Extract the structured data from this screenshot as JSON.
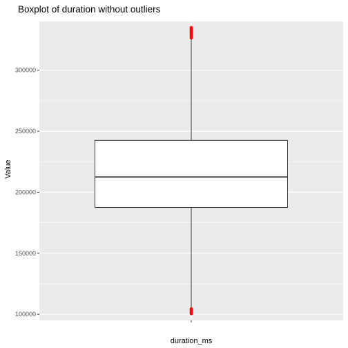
{
  "chart_data": {
    "type": "boxplot",
    "title": "Boxplot of duration without outliers",
    "xlabel": "",
    "ylabel": "Value",
    "categories": [
      "duration_ms"
    ],
    "ylim": [
      95000,
      340000
    ],
    "y_ticks": [
      100000,
      150000,
      200000,
      250000,
      300000
    ],
    "y_tick_labels": [
      "100000",
      "150000",
      "200000",
      "250000",
      "300000"
    ],
    "grid": true,
    "boxes": [
      {
        "category": "duration_ms",
        "whisker_low": 100500,
        "q1": 187500,
        "median": 212500,
        "q3": 242500,
        "whisker_high": 335000
      }
    ],
    "highlight_points": [
      {
        "category": "duration_ms",
        "y_from": 100500,
        "y_to": 104500
      },
      {
        "category": "duration_ms",
        "y_from": 326500,
        "y_to": 335000
      }
    ],
    "colors": {
      "panel_background": "#ebebeb",
      "grid": "#ffffff",
      "box_fill": "#ffffff",
      "box_stroke": "#333333",
      "highlight": "#ff0000"
    }
  }
}
